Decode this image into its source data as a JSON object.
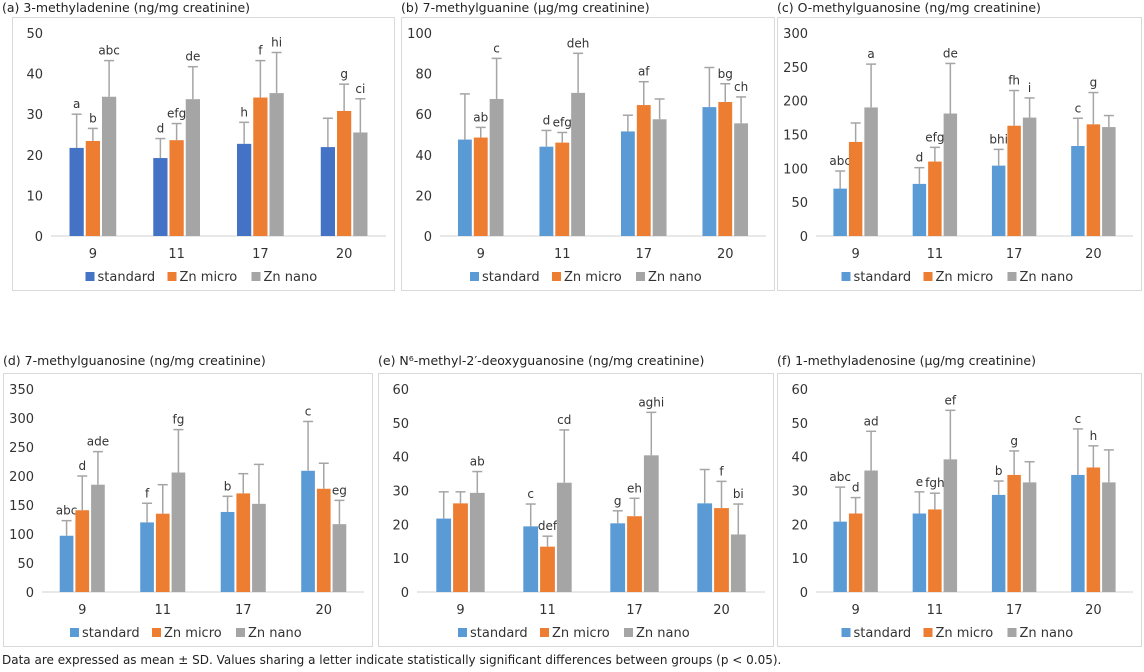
{
  "footer": "Data are expressed as mean ± SD. Values sharing a letter indicate statistically significant differences between groups (p < 0.05).",
  "colors": {
    "standard_a": "#4472C4",
    "standard": "#5B9BD5",
    "zn_micro": "#ED7D31",
    "zn_nano": "#A5A5A5",
    "error_bar": "#A5A5A5"
  },
  "chart_data": [
    {
      "id": "a",
      "type": "bar",
      "title": "(a) 3-methyladenine (ng/mg creatinine)",
      "categories": [
        "9",
        "11",
        "17",
        "20"
      ],
      "ylim": [
        0,
        50
      ],
      "yticks": [
        0,
        10,
        20,
        30,
        40,
        50
      ],
      "grid": false,
      "legend": "bottom",
      "series": [
        {
          "name": "standard",
          "color": "#4472C4",
          "values": [
            21.7,
            19.2,
            22.7,
            21.9
          ],
          "sd": [
            8.3,
            4.8,
            5.3,
            7.1
          ],
          "letters": [
            "a",
            "d",
            "h",
            ""
          ]
        },
        {
          "name": "Zn micro",
          "color": "#ED7D31",
          "values": [
            23.4,
            23.6,
            34.1,
            30.8
          ],
          "sd": [
            3.1,
            4.1,
            9.1,
            6.6
          ],
          "letters": [
            "b",
            "efg",
            "f",
            "g"
          ]
        },
        {
          "name": "Zn nano",
          "color": "#A5A5A5",
          "values": [
            34.3,
            33.7,
            35.2,
            25.5
          ],
          "sd": [
            8.9,
            8.0,
            10.0,
            8.3
          ],
          "letters": [
            "abc",
            "de",
            "hi",
            "ci"
          ]
        }
      ]
    },
    {
      "id": "b",
      "type": "bar",
      "title": "(b) 7-methylguanine (µg/mg creatinine)",
      "categories": [
        "9",
        "11",
        "17",
        "20"
      ],
      "ylim": [
        0,
        100
      ],
      "yticks": [
        0,
        20,
        40,
        60,
        80,
        100
      ],
      "grid": false,
      "legend": "bottom",
      "series": [
        {
          "name": "standard",
          "color": "#5B9BD5",
          "values": [
            47.5,
            44,
            51.5,
            63.5
          ],
          "sd": [
            22.5,
            8,
            8,
            19.5
          ],
          "letters": [
            "",
            "d",
            "",
            ""
          ]
        },
        {
          "name": "Zn micro",
          "color": "#ED7D31",
          "values": [
            48.5,
            46,
            64.5,
            66
          ],
          "sd": [
            5,
            5,
            11.5,
            9
          ],
          "letters": [
            "ab",
            "efg",
            "af",
            "bg"
          ]
        },
        {
          "name": "Zn nano",
          "color": "#A5A5A5",
          "values": [
            67.5,
            70.5,
            57.5,
            55.5
          ],
          "sd": [
            20,
            19.5,
            10,
            13
          ],
          "letters": [
            "c",
            "deh",
            "",
            "ch"
          ]
        }
      ]
    },
    {
      "id": "c",
      "type": "bar",
      "title": "(c) O-methylguanosine (ng/mg creatinine)",
      "categories": [
        "9",
        "11",
        "17",
        "20"
      ],
      "ylim": [
        0,
        300
      ],
      "yticks": [
        0,
        50,
        100,
        150,
        200,
        250,
        300
      ],
      "grid": false,
      "legend": "bottom",
      "series": [
        {
          "name": "standard",
          "color": "#5B9BD5",
          "values": [
            70,
            77,
            104,
            133
          ],
          "sd": [
            26,
            24,
            24,
            41
          ],
          "letters": [
            "abc",
            "d",
            "bhi",
            "c"
          ]
        },
        {
          "name": "Zn micro",
          "color": "#ED7D31",
          "values": [
            139,
            110,
            163,
            165
          ],
          "sd": [
            28,
            21,
            52,
            47
          ],
          "letters": [
            "",
            "efg",
            "fh",
            "g"
          ]
        },
        {
          "name": "Zn nano",
          "color": "#A5A5A5",
          "values": [
            190,
            181,
            175,
            161
          ],
          "sd": [
            64,
            74,
            29,
            17
          ],
          "letters": [
            "a",
            "de",
            "i",
            ""
          ]
        }
      ]
    },
    {
      "id": "d",
      "type": "bar",
      "title": "(d) 7-methylguanosine (ng/mg creatinine)",
      "categories": [
        "9",
        "11",
        "17",
        "20"
      ],
      "ylim": [
        0,
        350
      ],
      "yticks": [
        0,
        50,
        100,
        150,
        200,
        250,
        300,
        350
      ],
      "grid": false,
      "legend": "bottom",
      "series": [
        {
          "name": "standard",
          "color": "#5B9BD5",
          "values": [
            97,
            120,
            138,
            209
          ],
          "sd": [
            26,
            33,
            27,
            85
          ],
          "letters": [
            "abc",
            "f",
            "b",
            "c"
          ]
        },
        {
          "name": "Zn micro",
          "color": "#ED7D31",
          "values": [
            141,
            135,
            170,
            178
          ],
          "sd": [
            59,
            50,
            34,
            44
          ],
          "letters": [
            "d",
            "",
            "",
            ""
          ]
        },
        {
          "name": "Zn nano",
          "color": "#A5A5A5",
          "values": [
            185,
            206,
            152,
            117
          ],
          "sd": [
            57,
            74,
            68,
            41
          ],
          "letters": [
            "ade",
            "fg",
            "",
            "eg"
          ]
        }
      ]
    },
    {
      "id": "e",
      "type": "bar",
      "title": "(e) N⁶-methyl-2′-deoxyguanosine (ng/mg creatinine)",
      "categories": [
        "9",
        "11",
        "17",
        "20"
      ],
      "ylim": [
        0,
        60
      ],
      "yticks": [
        0,
        10,
        20,
        30,
        40,
        50,
        60
      ],
      "grid": false,
      "legend": "bottom",
      "series": [
        {
          "name": "standard",
          "color": "#5B9BD5",
          "values": [
            21.7,
            19.4,
            20.3,
            26.2
          ],
          "sd": [
            7.9,
            6.6,
            3.7,
            10
          ],
          "letters": [
            "",
            "c",
            "g",
            ""
          ]
        },
        {
          "name": "Zn micro",
          "color": "#ED7D31",
          "values": [
            26.2,
            13.4,
            22.4,
            24.8
          ],
          "sd": [
            3.4,
            3.1,
            5.3,
            7.9
          ],
          "letters": [
            "",
            "def",
            "eh",
            "f"
          ]
        },
        {
          "name": "Zn nano",
          "color": "#A5A5A5",
          "values": [
            29.3,
            32.3,
            40.4,
            17
          ],
          "sd": [
            6.3,
            15.6,
            12.7,
            9
          ],
          "letters": [
            "ab",
            "cd",
            "aghi",
            "bi"
          ]
        }
      ]
    },
    {
      "id": "f",
      "type": "bar",
      "title": "(f) 1-methyladenosine (µg/mg creatinine)",
      "categories": [
        "9",
        "11",
        "17",
        "20"
      ],
      "ylim": [
        0,
        60
      ],
      "yticks": [
        0,
        10,
        20,
        30,
        40,
        50,
        60
      ],
      "grid": false,
      "legend": "bottom",
      "series": [
        {
          "name": "standard",
          "color": "#5B9BD5",
          "values": [
            20.8,
            23.2,
            28.7,
            34.6
          ],
          "sd": [
            10.2,
            6.4,
            4.1,
            13.6
          ],
          "letters": [
            "abc",
            "e",
            "b",
            "c"
          ]
        },
        {
          "name": "Zn micro",
          "color": "#ED7D31",
          "values": [
            23.2,
            24.4,
            34.6,
            36.8
          ],
          "sd": [
            4.7,
            4.8,
            7.1,
            6.4
          ],
          "letters": [
            "d",
            "fgh",
            "g",
            "h"
          ]
        },
        {
          "name": "Zn nano",
          "color": "#A5A5A5",
          "values": [
            35.9,
            39.2,
            32.4,
            32.4
          ],
          "sd": [
            11.6,
            14.5,
            6.1,
            9.6
          ],
          "letters": [
            "ad",
            "ef",
            "",
            ""
          ]
        }
      ]
    }
  ]
}
